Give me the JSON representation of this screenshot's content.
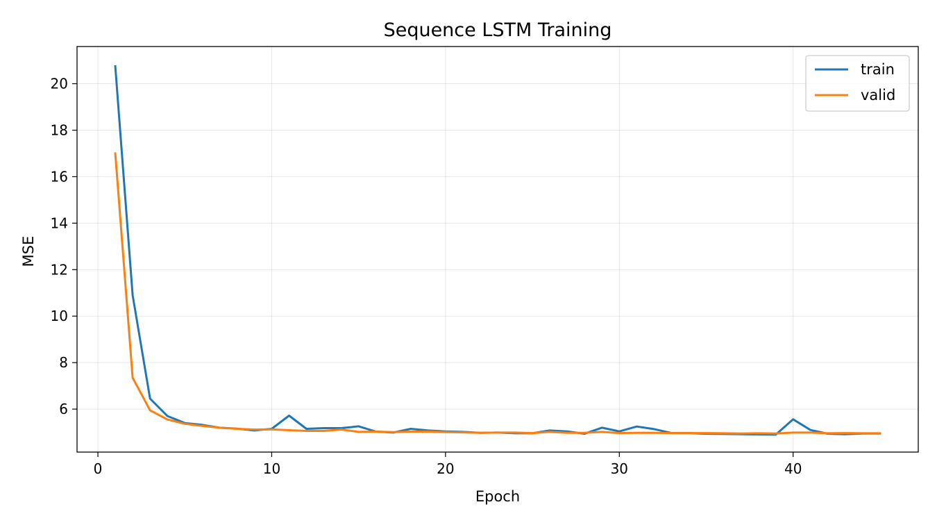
{
  "chart_data": {
    "type": "line",
    "title": "Sequence LSTM Training",
    "xlabel": "Epoch",
    "ylabel": "MSE",
    "xlim": [
      -1.2,
      47.2
    ],
    "ylim": [
      4.15,
      21.6
    ],
    "xticks": [
      0,
      10,
      20,
      30,
      40
    ],
    "yticks": [
      6,
      8,
      10,
      12,
      14,
      16,
      18,
      20
    ],
    "grid": true,
    "legend_position": "top-right",
    "x": [
      1,
      2,
      3,
      4,
      5,
      6,
      7,
      8,
      9,
      10,
      11,
      12,
      13,
      14,
      15,
      16,
      17,
      18,
      19,
      20,
      21,
      22,
      23,
      24,
      25,
      26,
      27,
      28,
      29,
      30,
      31,
      32,
      33,
      34,
      35,
      36,
      37,
      38,
      39,
      40,
      41,
      42,
      43,
      44,
      45
    ],
    "series": [
      {
        "name": "train",
        "color": "#1f77b4",
        "values": [
          20.75,
          10.9,
          6.45,
          5.7,
          5.4,
          5.32,
          5.2,
          5.16,
          5.08,
          5.15,
          5.72,
          5.15,
          5.18,
          5.18,
          5.26,
          5.03,
          4.99,
          5.15,
          5.08,
          5.04,
          5.02,
          4.98,
          4.99,
          4.96,
          4.96,
          5.08,
          5.04,
          4.94,
          5.2,
          5.04,
          5.25,
          5.14,
          4.97,
          4.97,
          4.94,
          4.93,
          4.92,
          4.91,
          4.9,
          5.56,
          5.1,
          4.94,
          4.92,
          4.95,
          4.95
        ]
      },
      {
        "name": "valid",
        "color": "#ff7f0e",
        "values": [
          17.0,
          7.35,
          5.95,
          5.55,
          5.37,
          5.28,
          5.2,
          5.15,
          5.12,
          5.13,
          5.09,
          5.06,
          5.06,
          5.12,
          5.02,
          5.03,
          5.01,
          5.03,
          5.03,
          5.01,
          5.0,
          4.98,
          4.99,
          4.99,
          4.97,
          5.02,
          4.98,
          4.98,
          5.02,
          4.97,
          4.98,
          4.98,
          4.97,
          4.97,
          4.97,
          4.96,
          4.95,
          4.96,
          4.95,
          4.99,
          4.99,
          4.96,
          4.97,
          4.96,
          4.96
        ]
      }
    ]
  }
}
